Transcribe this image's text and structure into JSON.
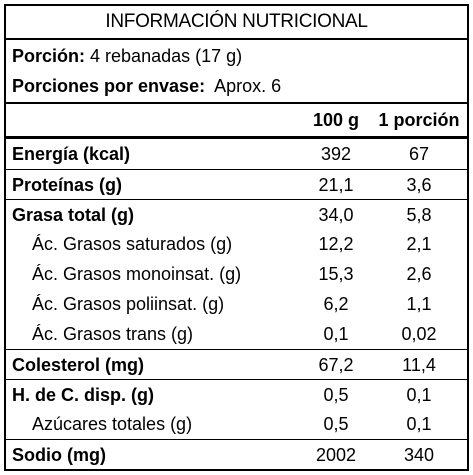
{
  "title": "INFORMACIÓN NUTRICIONAL",
  "serving": {
    "portion_label": "Porción:",
    "portion_value": "4 rebanadas (17 g)",
    "per_package_label": "Porciones por envase:",
    "per_package_value": "Aprox. 6"
  },
  "columns": {
    "per_100g": "100 g",
    "per_portion": "1 porción"
  },
  "rows": [
    {
      "name": "Energía (kcal)",
      "per_100g": "392",
      "per_portion": "67"
    },
    {
      "name": "Proteínas (g)",
      "per_100g": "21,1",
      "per_portion": "3,6"
    },
    {
      "name": "Grasa total (g)",
      "per_100g": "34,0",
      "per_portion": "5,8"
    },
    {
      "name": "Ác. Grasos saturados (g)",
      "per_100g": "12,2",
      "per_portion": "2,1"
    },
    {
      "name": "Ác. Grasos monoinsat. (g)",
      "per_100g": "15,3",
      "per_portion": "2,6"
    },
    {
      "name": "Ác. Grasos poliinsat. (g)",
      "per_100g": "6,2",
      "per_portion": "1,1"
    },
    {
      "name": "Ác. Grasos trans (g)",
      "per_100g": "0,1",
      "per_portion": "0,02"
    },
    {
      "name": "Colesterol (mg)",
      "per_100g": "67,2",
      "per_portion": "11,4"
    },
    {
      "name": "H. de C. disp. (g)",
      "per_100g": "0,5",
      "per_portion": "0,1"
    },
    {
      "name": "Azúcares totales (g)",
      "per_100g": "0,5",
      "per_portion": "0,1"
    },
    {
      "name": "Sodio (mg)",
      "per_100g": "2002",
      "per_portion": "340"
    }
  ]
}
